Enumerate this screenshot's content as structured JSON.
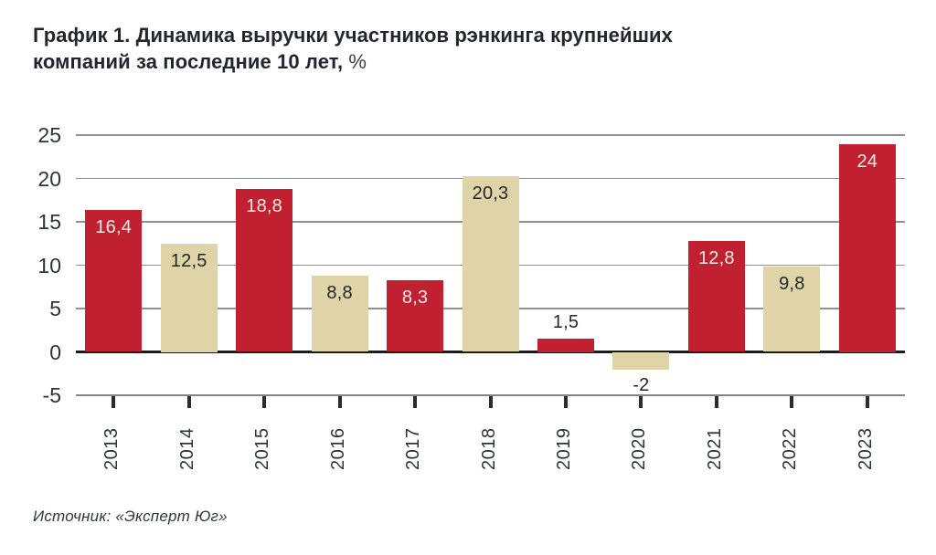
{
  "title": {
    "main": "График 1. Динамика выручки участников рэнкинга крупнейших компаний за последние 10 лет, ",
    "pct": "%"
  },
  "source": "Источник: «Эксперт Юг»",
  "colors": {
    "bar_red": "#c02030",
    "bar_beige": "#ded4a8",
    "label_on_red": "#f6ece7",
    "label_dark": "#24262b",
    "gridline": "#909090",
    "zero_line": "#1b1b1b"
  },
  "chart_data": {
    "type": "bar",
    "title": "График 1. Динамика выручки участников рэнкинга крупнейших компаний за последние 10 лет, %",
    "xlabel": "",
    "ylabel": "",
    "categories": [
      "2013",
      "2014",
      "2015",
      "2016",
      "2017",
      "2018",
      "2019",
      "2020",
      "2021",
      "2022",
      "2023"
    ],
    "values": [
      16.4,
      12.5,
      18.8,
      8.8,
      8.3,
      20.3,
      1.5,
      -2,
      12.8,
      9.8,
      24
    ],
    "value_labels": [
      "16,4",
      "12,5",
      "18,8",
      "8,8",
      "8,3",
      "20,3",
      "1,5",
      "-2",
      "12,8",
      "9,8",
      "24"
    ],
    "bar_color_pattern": [
      "red",
      "beige",
      "red",
      "beige",
      "red",
      "beige",
      "red",
      "beige",
      "red",
      "beige",
      "red"
    ],
    "ylim": [
      -5,
      25
    ],
    "yticks": [
      25,
      20,
      15,
      10,
      5,
      0,
      -5
    ],
    "grid": true,
    "legend": "none"
  }
}
